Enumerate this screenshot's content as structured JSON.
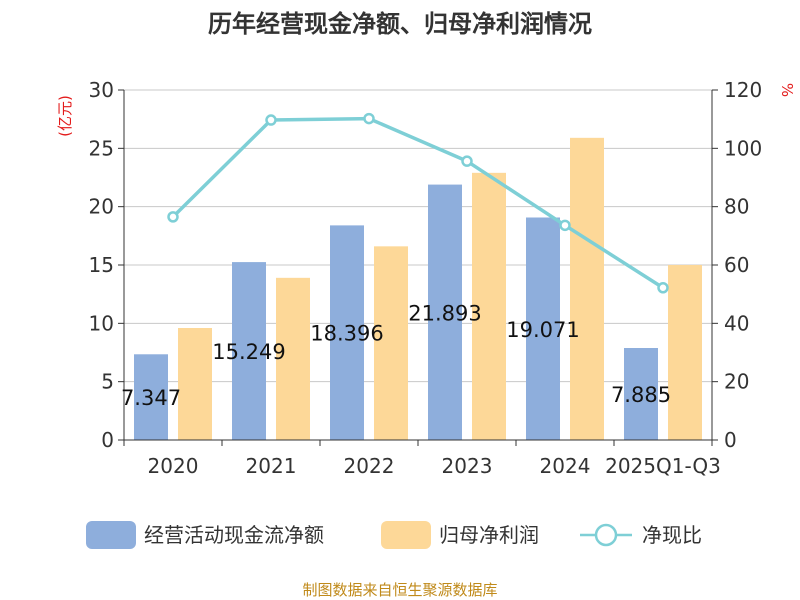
{
  "chart_data": {
    "type": "bar",
    "title": "历年经营现金净额、归母净利润情况",
    "categories": [
      "2020",
      "2021",
      "2022",
      "2023",
      "2024",
      "2025Q1-Q3"
    ],
    "series": [
      {
        "name": "经营活动现金流净额",
        "type": "bar",
        "axis": "left",
        "color": "#8eaedc",
        "values": [
          7.347,
          15.249,
          18.396,
          21.893,
          19.071,
          7.885
        ],
        "labels": [
          "7.347",
          "15.249",
          "18.396",
          "21.893",
          "19.071",
          "7.885"
        ]
      },
      {
        "name": "归母净利润",
        "type": "bar",
        "axis": "left",
        "color": "#fdd898",
        "values": [
          9.6,
          13.9,
          16.6,
          22.9,
          25.9,
          15.0
        ]
      },
      {
        "name": "净现比",
        "type": "line",
        "axis": "right",
        "color": "#7ecfd6",
        "values": [
          76.5,
          109.7,
          110.2,
          95.6,
          73.6,
          52.2
        ]
      }
    ],
    "y_left": {
      "unit": "(亿元)",
      "min": 0,
      "max": 30,
      "ticks": [
        0,
        5,
        10,
        15,
        20,
        25,
        30
      ]
    },
    "y_right": {
      "unit": "%",
      "min": 0,
      "max": 120,
      "ticks": [
        0,
        20,
        40,
        60,
        80,
        100,
        120
      ]
    },
    "grid": true,
    "legend_position": "bottom"
  },
  "footer": {
    "source": "制图数据来自恒生聚源数据库"
  },
  "colors": {
    "grid": "#c8c8c8",
    "axis": "#333333",
    "unit": "#e31b1b",
    "source": "#c08a1a"
  },
  "icons": {
    "legend_bar": "legend-swatch-rect",
    "legend_line": "legend-line-circle"
  }
}
